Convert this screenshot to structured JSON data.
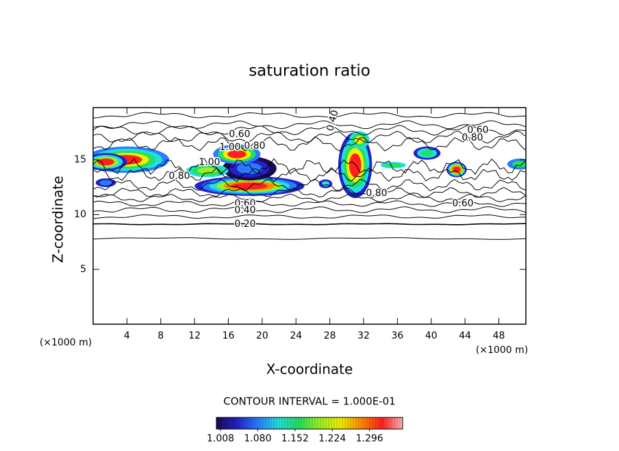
{
  "chart_data": {
    "type": "contour",
    "title": "saturation ratio",
    "x_label": "X-coordinate",
    "y_label": "Z-coordinate",
    "x_unit_label": "(×1000 m)",
    "xlim": [
      0,
      51.2
    ],
    "xticks": [
      4,
      8,
      12,
      16,
      20,
      24,
      28,
      32,
      36,
      40,
      44,
      48
    ],
    "ylim": [
      0,
      19.75
    ],
    "yticks": [
      5,
      10,
      15
    ],
    "contour_labels": [
      {
        "value": 0.6,
        "label": "0.60"
      },
      {
        "value": 1.0,
        "label": "1.00"
      },
      {
        "value": 0.8,
        "label": "0.80"
      },
      {
        "value": 0.4,
        "label": "0.40"
      },
      {
        "value": 0.6,
        "label": "0.60"
      },
      {
        "value": 0.8,
        "label": "0.80"
      },
      {
        "value": 1.0,
        "label": "1.00"
      },
      {
        "value": 0.8,
        "label": "0.80"
      },
      {
        "value": 0.6,
        "label": "0.60"
      },
      {
        "value": 0.4,
        "label": "0.40"
      },
      {
        "value": 0.2,
        "label": "0.20"
      },
      {
        "value": 0.8,
        "label": "0.80"
      },
      {
        "value": 0.6,
        "label": "0.60"
      }
    ],
    "contour_interval_label": "CONTOUR INTERVAL = 1.000E-01",
    "colormap": [
      "#1c0a50",
      "#2222c8",
      "#2a7cff",
      "#22dede",
      "#22e060",
      "#9cf020",
      "#f0f000",
      "#ff8a00",
      "#ff2020",
      "#ffb4b4"
    ],
    "clim": [
      1.0,
      1.36
    ],
    "cticks": [
      1.008,
      {
        "value": 1.08,
        "label": "1.080"
      },
      1.152,
      1.224,
      1.296
    ]
  }
}
